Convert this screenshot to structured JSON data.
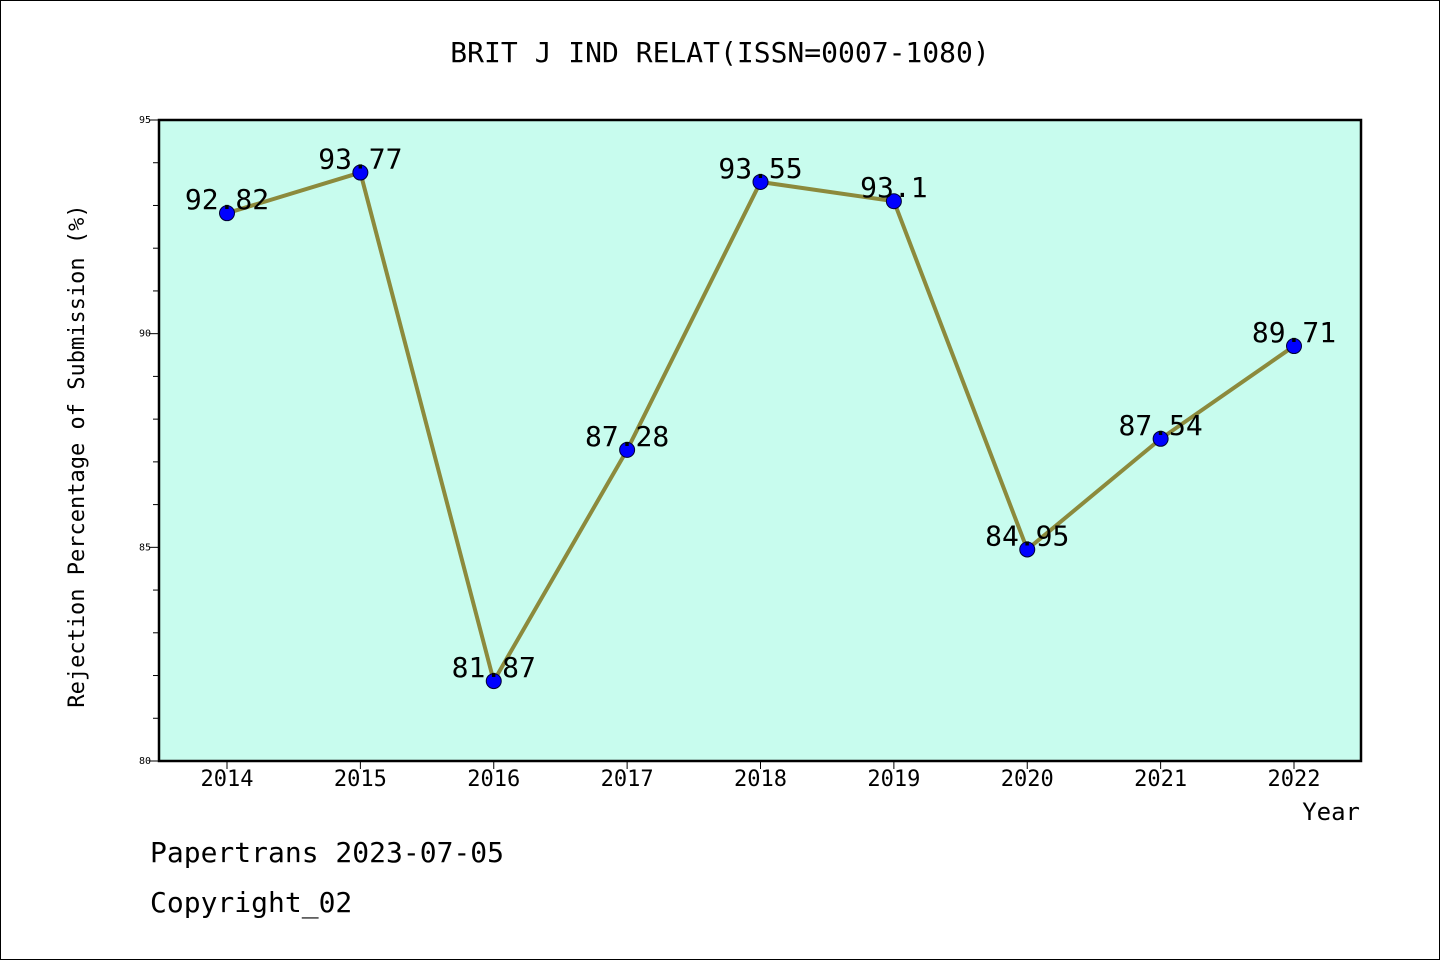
{
  "chart_data": {
    "type": "line",
    "title": "BRIT J IND RELAT(ISSN=0007-1080)",
    "xlabel": "Year",
    "ylabel": "Rejection Percentage of Submission (%)",
    "categories": [
      "2014",
      "2015",
      "2016",
      "2017",
      "2018",
      "2019",
      "2020",
      "2021",
      "2022"
    ],
    "values": [
      92.82,
      93.77,
      81.87,
      87.28,
      93.55,
      93.1,
      84.95,
      87.54,
      89.71
    ],
    "data_labels": [
      "92.82",
      "93.77",
      "81.87",
      "87.28",
      "93.55",
      "93.1",
      "84.95",
      "87.54",
      "89.71"
    ],
    "ylim": [
      80,
      95
    ],
    "yticks": [
      "80",
      "85",
      "90",
      "95"
    ],
    "grid": false,
    "colors": {
      "plot_background": "#c8fcee",
      "line": "#8c8a3c",
      "marker": "#0000ff"
    }
  },
  "footer": {
    "line1": "Papertrans 2023-07-05",
    "line2": "Copyright_02"
  }
}
